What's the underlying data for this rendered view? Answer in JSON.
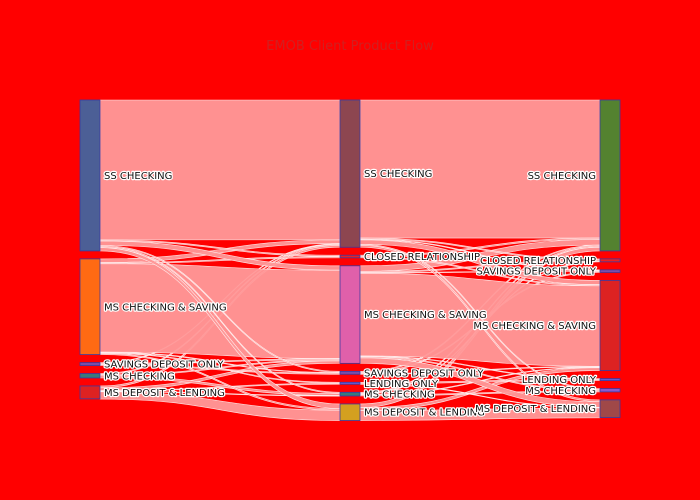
{
  "chart_data": {
    "type": "sankey",
    "title": "EMOB Client Product Flow",
    "background": "#ff0000",
    "link_color": "#ff9999",
    "columns": [
      [
        {
          "id": "a_ss",
          "label": "SS CHECKING",
          "color": "#4c5f96",
          "value": 41
        },
        {
          "id": "a_mscs",
          "label": "MS CHECKING & SAVING",
          "color": "#ff6a13",
          "value": 26
        },
        {
          "id": "a_sdo",
          "label": "SAVINGS DEPOSIT ONLY",
          "color": "#7a4fa8",
          "value": 0.8
        },
        {
          "id": "a_msc",
          "label": "MS CHECKING",
          "color": "#3a7a7a",
          "value": 1.2
        },
        {
          "id": "a_msdl",
          "label": "MS DEPOSIT & LENDING",
          "color": "#dd2222",
          "value": 3.5
        }
      ],
      [
        {
          "id": "b_ss",
          "label": "SS CHECKING",
          "color": "#8d4650",
          "value": 40
        },
        {
          "id": "b_cr",
          "label": "CLOSED RELATIONSHIP",
          "color": "#ee2020",
          "value": 0.7
        },
        {
          "id": "b_mscs",
          "label": "MS CHECKING & SAVING",
          "color": "#e060aa",
          "value": 26.5
        },
        {
          "id": "b_sdo",
          "label": "SAVINGS DEPOSIT ONLY",
          "color": "#7a4fa8",
          "value": 0.8
        },
        {
          "id": "b_lo",
          "label": "LENDING ONLY",
          "color": "#6a5acd",
          "value": 0.4
        },
        {
          "id": "b_msc",
          "label": "MS CHECKING",
          "color": "#3a7a7a",
          "value": 1.0
        },
        {
          "id": "b_msdl",
          "label": "MS DEPOSIT & LENDING",
          "color": "#d4a020",
          "value": 4.5
        }
      ],
      [
        {
          "id": "c_ss",
          "label": "SS CHECKING",
          "color": "#548230",
          "value": 41
        },
        {
          "id": "c_cr",
          "label": "CLOSED RELATIONSHIP",
          "color": "#ee2020",
          "value": 0.8
        },
        {
          "id": "c_sdo",
          "label": "SAVINGS DEPOSIT ONLY",
          "color": "#7a4fa8",
          "value": 0.7
        },
        {
          "id": "c_mscs",
          "label": "MS CHECKING & SAVING",
          "color": "#dd2222",
          "value": 24.5
        },
        {
          "id": "c_lo",
          "label": "LENDING ONLY",
          "color": "#6a5acd",
          "value": 0.5
        },
        {
          "id": "c_msc",
          "label": "MS CHECKING",
          "color": "#8a5acd",
          "value": 0.9
        },
        {
          "id": "c_msdl",
          "label": "MS DEPOSIT & LENDING",
          "color": "#a04848",
          "value": 4.8
        }
      ]
    ],
    "links": [
      {
        "source": "a_ss",
        "target": "b_ss",
        "value": 38
      },
      {
        "source": "a_ss",
        "target": "b_cr",
        "value": 0.3
      },
      {
        "source": "a_ss",
        "target": "b_mscs",
        "value": 1.2
      },
      {
        "source": "a_ss",
        "target": "b_sdo",
        "value": 0.3
      },
      {
        "source": "a_ss",
        "target": "b_msc",
        "value": 0.3
      },
      {
        "source": "a_ss",
        "target": "b_msdl",
        "value": 0.9
      },
      {
        "source": "a_mscs",
        "target": "b_ss",
        "value": 1.0
      },
      {
        "source": "a_mscs",
        "target": "b_cr",
        "value": 0.3
      },
      {
        "source": "a_mscs",
        "target": "b_mscs",
        "value": 24.0
      },
      {
        "source": "a_mscs",
        "target": "b_sdo",
        "value": 0.2
      },
      {
        "source": "a_mscs",
        "target": "b_lo",
        "value": 0.2
      },
      {
        "source": "a_mscs",
        "target": "b_msdl",
        "value": 0.3
      },
      {
        "source": "a_sdo",
        "target": "b_ss",
        "value": 0.2
      },
      {
        "source": "a_sdo",
        "target": "b_sdo",
        "value": 0.3
      },
      {
        "source": "a_sdo",
        "target": "b_mscs",
        "value": 0.3
      },
      {
        "source": "a_msc",
        "target": "b_ss",
        "value": 0.3
      },
      {
        "source": "a_msc",
        "target": "b_mscs",
        "value": 0.3
      },
      {
        "source": "a_msc",
        "target": "b_msc",
        "value": 0.6
      },
      {
        "source": "a_msdl",
        "target": "b_ss",
        "value": 0.5
      },
      {
        "source": "a_msdl",
        "target": "b_mscs",
        "value": 0.7
      },
      {
        "source": "a_msdl",
        "target": "b_lo",
        "value": 0.2
      },
      {
        "source": "a_msdl",
        "target": "b_msc",
        "value": 0.1
      },
      {
        "source": "a_msdl",
        "target": "b_msdl",
        "value": 2.0
      },
      {
        "source": "b_ss",
        "target": "c_ss",
        "value": 37.5
      },
      {
        "source": "b_ss",
        "target": "c_cr",
        "value": 0.3
      },
      {
        "source": "b_ss",
        "target": "c_sdo",
        "value": 0.2
      },
      {
        "source": "b_ss",
        "target": "c_mscs",
        "value": 1.2
      },
      {
        "source": "b_ss",
        "target": "c_msc",
        "value": 0.3
      },
      {
        "source": "b_ss",
        "target": "c_msdl",
        "value": 0.5
      },
      {
        "source": "b_cr",
        "target": "c_ss",
        "value": 0.4
      },
      {
        "source": "b_cr",
        "target": "c_mscs",
        "value": 0.3
      },
      {
        "source": "b_mscs",
        "target": "c_ss",
        "value": 1.5
      },
      {
        "source": "b_mscs",
        "target": "c_cr",
        "value": 0.3
      },
      {
        "source": "b_mscs",
        "target": "c_sdo",
        "value": 0.2
      },
      {
        "source": "b_mscs",
        "target": "c_mscs",
        "value": 22.5
      },
      {
        "source": "b_mscs",
        "target": "c_lo",
        "value": 0.2
      },
      {
        "source": "b_mscs",
        "target": "c_msc",
        "value": 0.3
      },
      {
        "source": "b_mscs",
        "target": "c_msdl",
        "value": 1.5
      },
      {
        "source": "b_sdo",
        "target": "c_ss",
        "value": 0.3
      },
      {
        "source": "b_sdo",
        "target": "c_sdo",
        "value": 0.3
      },
      {
        "source": "b_sdo",
        "target": "c_mscs",
        "value": 0.2
      },
      {
        "source": "b_lo",
        "target": "c_lo",
        "value": 0.3
      },
      {
        "source": "b_lo",
        "target": "c_msdl",
        "value": 0.1
      },
      {
        "source": "b_msc",
        "target": "c_ss",
        "value": 0.3
      },
      {
        "source": "b_msc",
        "target": "c_cr",
        "value": 0.2
      },
      {
        "source": "b_msc",
        "target": "c_msc",
        "value": 0.3
      },
      {
        "source": "b_msc",
        "target": "c_mscs",
        "value": 0.2
      },
      {
        "source": "b_msdl",
        "target": "c_ss",
        "value": 1.0
      },
      {
        "source": "b_msdl",
        "target": "c_mscs",
        "value": 0.8
      },
      {
        "source": "b_msdl",
        "target": "c_msdl",
        "value": 2.7
      }
    ]
  }
}
